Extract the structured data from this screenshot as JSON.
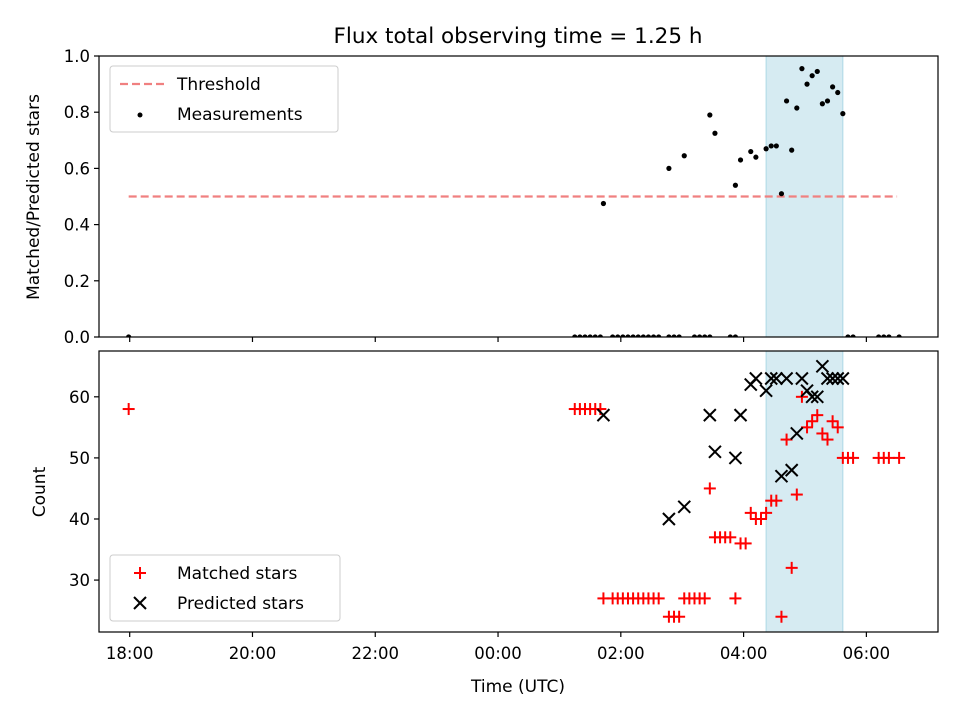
{
  "chart_data": [
    {
      "type": "scatter",
      "title": "Flux total observing time = 1.25 h",
      "xlabel": "",
      "ylabel": "Matched/Predicted stars",
      "xlim": [
        "17:30",
        "07:10"
      ],
      "ylim": [
        0,
        1.0
      ],
      "yticks": [
        "0.0",
        "0.2",
        "0.4",
        "0.6",
        "0.8",
        "1.0"
      ],
      "highlight_span": {
        "start": "04:22",
        "end": "05:37",
        "color": "#add8e6"
      },
      "legend": {
        "placement": "upper left",
        "entries": [
          "Threshold",
          "Measurements"
        ]
      },
      "threshold": {
        "name": "Threshold",
        "value": 0.5,
        "from": "17:59",
        "to": "06:30",
        "color": "#f08080",
        "style": "dashed"
      },
      "series": [
        {
          "name": "Measurements",
          "color": "#000000",
          "marker": "dot",
          "points": [
            [
              "17:59",
              0.0
            ],
            [
              "01:15",
              0.0
            ],
            [
              "01:20",
              0.0
            ],
            [
              "01:25",
              0.0
            ],
            [
              "01:30",
              0.0
            ],
            [
              "01:35",
              0.0
            ],
            [
              "01:40",
              0.0
            ],
            [
              "01:43",
              0.475
            ],
            [
              "01:52",
              0.0
            ],
            [
              "01:57",
              0.0
            ],
            [
              "02:02",
              0.0
            ],
            [
              "02:07",
              0.0
            ],
            [
              "02:12",
              0.0
            ],
            [
              "02:17",
              0.0
            ],
            [
              "02:22",
              0.0
            ],
            [
              "02:27",
              0.0
            ],
            [
              "02:32",
              0.0
            ],
            [
              "02:37",
              0.0
            ],
            [
              "02:47",
              0.0
            ],
            [
              "02:52",
              0.0
            ],
            [
              "02:57",
              0.0
            ],
            [
              "02:47",
              0.6
            ],
            [
              "03:02",
              0.645
            ],
            [
              "03:12",
              0.0
            ],
            [
              "03:17",
              0.0
            ],
            [
              "03:22",
              0.0
            ],
            [
              "03:27",
              0.0
            ],
            [
              "03:27",
              0.79
            ],
            [
              "03:32",
              0.725
            ],
            [
              "03:47",
              0.0
            ],
            [
              "03:52",
              0.0
            ],
            [
              "03:52",
              0.54
            ],
            [
              "03:57",
              0.63
            ],
            [
              "04:07",
              0.66
            ],
            [
              "04:12",
              0.64
            ],
            [
              "04:22",
              0.67
            ],
            [
              "04:27",
              0.68
            ],
            [
              "04:32",
              0.68
            ],
            [
              "04:37",
              0.51
            ],
            [
              "04:42",
              0.84
            ],
            [
              "04:47",
              0.665
            ],
            [
              "04:52",
              0.815
            ],
            [
              "04:57",
              0.955
            ],
            [
              "05:02",
              0.9
            ],
            [
              "05:07",
              0.93
            ],
            [
              "05:12",
              0.945
            ],
            [
              "05:17",
              0.83
            ],
            [
              "05:22",
              0.84
            ],
            [
              "05:27",
              0.89
            ],
            [
              "05:32",
              0.87
            ],
            [
              "05:37",
              0.795
            ],
            [
              "05:42",
              0.0
            ],
            [
              "05:47",
              0.0
            ],
            [
              "06:12",
              0.0
            ],
            [
              "06:17",
              0.0
            ],
            [
              "06:22",
              0.0
            ],
            [
              "06:32",
              0.0
            ]
          ]
        }
      ]
    },
    {
      "type": "scatter",
      "title": "",
      "xlabel": "Time (UTC)",
      "ylabel": "Count",
      "xlim": [
        "17:30",
        "07:10"
      ],
      "ylim": [
        21.5,
        67.5
      ],
      "xticks": [
        "18:00",
        "20:00",
        "22:00",
        "00:00",
        "02:00",
        "04:00",
        "06:00"
      ],
      "yticks": [
        "30",
        "40",
        "50",
        "60"
      ],
      "highlight_span": {
        "start": "04:22",
        "end": "05:37",
        "color": "#add8e6"
      },
      "legend": {
        "placement": "lower left",
        "entries": [
          "Matched stars",
          "Predicted stars"
        ]
      },
      "series": [
        {
          "name": "Matched stars",
          "color": "#ff0000",
          "marker": "plus",
          "points": [
            [
              "17:59",
              58
            ],
            [
              "01:15",
              58
            ],
            [
              "01:20",
              58
            ],
            [
              "01:25",
              58
            ],
            [
              "01:30",
              58
            ],
            [
              "01:35",
              58
            ],
            [
              "01:40",
              58
            ],
            [
              "01:43",
              27
            ],
            [
              "01:52",
              27
            ],
            [
              "01:57",
              27
            ],
            [
              "02:02",
              27
            ],
            [
              "02:07",
              27
            ],
            [
              "02:12",
              27
            ],
            [
              "02:17",
              27
            ],
            [
              "02:22",
              27
            ],
            [
              "02:27",
              27
            ],
            [
              "02:32",
              27
            ],
            [
              "02:37",
              27
            ],
            [
              "02:47",
              24
            ],
            [
              "02:52",
              24
            ],
            [
              "02:57",
              24
            ],
            [
              "03:02",
              27
            ],
            [
              "03:07",
              27
            ],
            [
              "03:12",
              27
            ],
            [
              "03:17",
              27
            ],
            [
              "03:22",
              27
            ],
            [
              "03:27",
              45
            ],
            [
              "03:32",
              37
            ],
            [
              "03:37",
              37
            ],
            [
              "03:42",
              37
            ],
            [
              "03:47",
              37
            ],
            [
              "03:52",
              27
            ],
            [
              "03:57",
              36
            ],
            [
              "04:02",
              36
            ],
            [
              "04:07",
              41
            ],
            [
              "04:12",
              40
            ],
            [
              "04:17",
              40
            ],
            [
              "04:22",
              41
            ],
            [
              "04:27",
              43
            ],
            [
              "04:32",
              43
            ],
            [
              "04:37",
              24
            ],
            [
              "04:42",
              53
            ],
            [
              "04:47",
              32
            ],
            [
              "04:52",
              44
            ],
            [
              "04:57",
              60
            ],
            [
              "05:02",
              55
            ],
            [
              "05:07",
              56
            ],
            [
              "05:12",
              57
            ],
            [
              "05:17",
              54
            ],
            [
              "05:22",
              53
            ],
            [
              "05:27",
              56
            ],
            [
              "05:32",
              55
            ],
            [
              "05:37",
              50
            ],
            [
              "05:42",
              50
            ],
            [
              "05:47",
              50
            ],
            [
              "06:12",
              50
            ],
            [
              "06:17",
              50
            ],
            [
              "06:22",
              50
            ],
            [
              "06:32",
              50
            ]
          ]
        },
        {
          "name": "Predicted stars",
          "color": "#000000",
          "marker": "x",
          "points": [
            [
              "01:43",
              57
            ],
            [
              "02:47",
              40
            ],
            [
              "03:02",
              42
            ],
            [
              "03:27",
              57
            ],
            [
              "03:32",
              51
            ],
            [
              "03:52",
              50
            ],
            [
              "03:57",
              57
            ],
            [
              "04:07",
              62
            ],
            [
              "04:12",
              63
            ],
            [
              "04:22",
              61
            ],
            [
              "04:27",
              63
            ],
            [
              "04:32",
              63
            ],
            [
              "04:37",
              47
            ],
            [
              "04:42",
              63
            ],
            [
              "04:47",
              48
            ],
            [
              "04:52",
              54
            ],
            [
              "04:57",
              63
            ],
            [
              "05:02",
              61
            ],
            [
              "05:07",
              60
            ],
            [
              "05:12",
              60
            ],
            [
              "05:17",
              65
            ],
            [
              "05:22",
              63
            ],
            [
              "05:27",
              63
            ],
            [
              "05:32",
              63
            ],
            [
              "05:37",
              63
            ]
          ]
        }
      ]
    }
  ]
}
